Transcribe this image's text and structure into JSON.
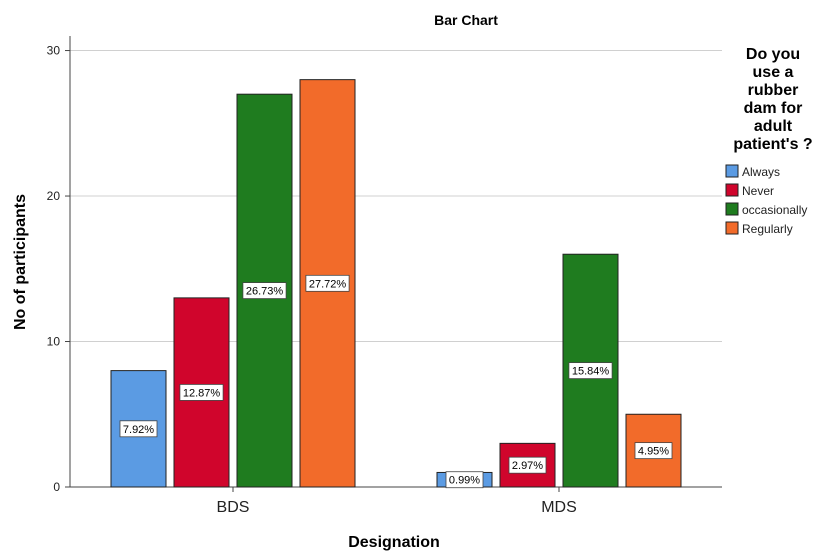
{
  "chart_data": {
    "type": "bar",
    "title": "Bar Chart",
    "xlabel": "Designation",
    "ylabel": "No of participants",
    "categories": [
      "BDS",
      "MDS"
    ],
    "ylim": [
      0,
      31
    ],
    "yticks": [
      0,
      10,
      20,
      30
    ],
    "grid": true,
    "legend": {
      "title_lines": [
        "Do you",
        "use a",
        "rubber",
        "dam for",
        "adult",
        "patient's ?"
      ],
      "placement": "right"
    },
    "series": [
      {
        "name": "Always",
        "color": "#5b9be3",
        "values": [
          8,
          1
        ],
        "labels": [
          "7.92%",
          "0.99%"
        ]
      },
      {
        "name": "Never",
        "color": "#d0052c",
        "values": [
          13,
          3
        ],
        "labels": [
          "12.87%",
          "2.97%"
        ]
      },
      {
        "name": "occasionally",
        "color": "#1f7c1f",
        "values": [
          27,
          16
        ],
        "labels": [
          "26.73%",
          "15.84%"
        ]
      },
      {
        "name": "Regularly",
        "color": "#f26b2a",
        "values": [
          28,
          5
        ],
        "labels": [
          "27.72%",
          "4.95%"
        ]
      }
    ]
  }
}
